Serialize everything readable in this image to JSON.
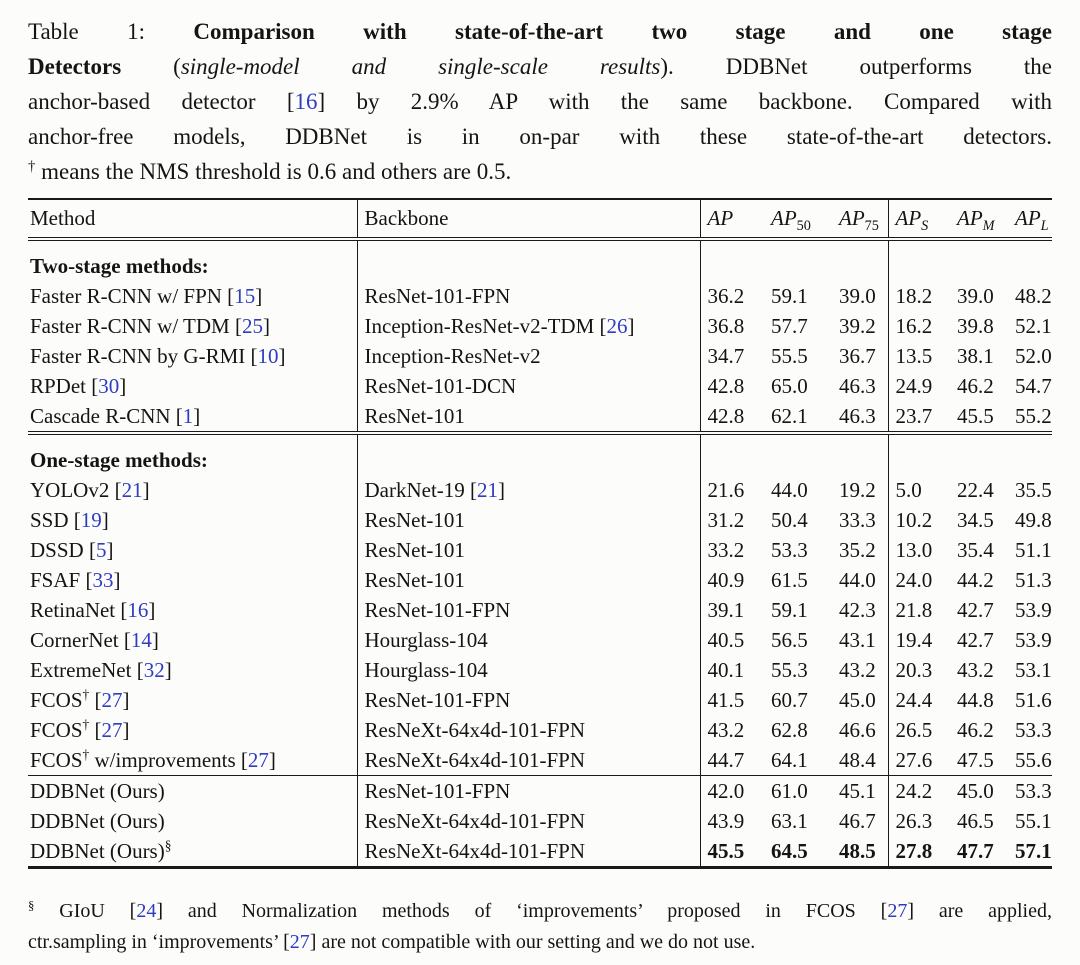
{
  "colors": {
    "citation": "#2e3cc2",
    "text": "#141414",
    "rule": "#1a1a1a",
    "background": "#fcfcfb"
  },
  "caption": {
    "lines": [
      {
        "last": false,
        "runs": [
          {
            "t": "Table 1: "
          },
          {
            "t": "Comparison with state-of-the-art two stage and one stage",
            "st": "bold"
          }
        ]
      },
      {
        "last": false,
        "runs": [
          {
            "t": "Detectors",
            "st": "bold"
          },
          {
            "t": " ("
          },
          {
            "t": "single-model and single-scale results",
            "st": "italic"
          },
          {
            "t": "). DDBNet outperforms the"
          }
        ]
      },
      {
        "last": false,
        "runs": [
          {
            "t": "anchor-based detector ["
          },
          {
            "t": "16",
            "st": "cite"
          },
          {
            "t": "] by 2.9% AP with the same backbone. Compared with"
          }
        ]
      },
      {
        "last": false,
        "runs": [
          {
            "t": "anchor-free models, DDBNet is in on-par with these state-of-the-art detectors."
          }
        ]
      },
      {
        "last": true,
        "runs": [
          {
            "t": "†",
            "st": "sup"
          },
          {
            "t": " means the NMS threshold is 0.6 and others are 0.5."
          }
        ]
      }
    ]
  },
  "table": {
    "header": {
      "method": "Method",
      "backbone": "Backbone",
      "metrics": [
        {
          "base": "AP",
          "sub": ""
        },
        {
          "base": "AP",
          "sub": "50"
        },
        {
          "base": "AP",
          "sub": "75"
        },
        {
          "base": "AP",
          "sub": "S"
        },
        {
          "base": "AP",
          "sub": "M"
        },
        {
          "base": "AP",
          "sub": "L"
        }
      ]
    },
    "sections": [
      {
        "title": "Two-stage methods:",
        "rule": "none",
        "rows": [
          {
            "method": [
              {
                "t": "Faster R-CNN w/ FPN ["
              },
              {
                "t": "15",
                "st": "cite"
              },
              {
                "t": "]"
              }
            ],
            "backbone": [
              {
                "t": "ResNet-101-FPN"
              }
            ],
            "values": [
              "36.2",
              "59.1",
              "39.0",
              "18.2",
              "39.0",
              "48.2"
            ],
            "bold": false
          },
          {
            "method": [
              {
                "t": "Faster R-CNN w/ TDM ["
              },
              {
                "t": "25",
                "st": "cite"
              },
              {
                "t": "]"
              }
            ],
            "backbone": [
              {
                "t": "Inception-ResNet-v2-TDM ["
              },
              {
                "t": "26",
                "st": "cite"
              },
              {
                "t": "]"
              }
            ],
            "values": [
              "36.8",
              "57.7",
              "39.2",
              "16.2",
              "39.8",
              "52.1"
            ],
            "bold": false
          },
          {
            "method": [
              {
                "t": "Faster R-CNN by G-RMI ["
              },
              {
                "t": "10",
                "st": "cite"
              },
              {
                "t": "]"
              }
            ],
            "backbone": [
              {
                "t": "Inception-ResNet-v2"
              }
            ],
            "values": [
              "34.7",
              "55.5",
              "36.7",
              "13.5",
              "38.1",
              "52.0"
            ],
            "bold": false
          },
          {
            "method": [
              {
                "t": "RPDet ["
              },
              {
                "t": "30",
                "st": "cite"
              },
              {
                "t": "]"
              }
            ],
            "backbone": [
              {
                "t": "ResNet-101-DCN"
              }
            ],
            "values": [
              "42.8",
              "65.0",
              "46.3",
              "24.9",
              "46.2",
              "54.7"
            ],
            "bold": false
          },
          {
            "method": [
              {
                "t": "Cascade R-CNN ["
              },
              {
                "t": "1",
                "st": "cite"
              },
              {
                "t": "]"
              }
            ],
            "backbone": [
              {
                "t": "ResNet-101"
              }
            ],
            "values": [
              "42.8",
              "62.1",
              "46.3",
              "23.7",
              "45.5",
              "55.2"
            ],
            "bold": false
          }
        ]
      },
      {
        "title": "One-stage methods:",
        "rule": "double",
        "rows": [
          {
            "method": [
              {
                "t": "YOLOv2 ["
              },
              {
                "t": "21",
                "st": "cite"
              },
              {
                "t": "]"
              }
            ],
            "backbone": [
              {
                "t": "DarkNet-19 ["
              },
              {
                "t": "21",
                "st": "cite"
              },
              {
                "t": "]"
              }
            ],
            "values": [
              "21.6",
              "44.0",
              "19.2",
              "5.0",
              "22.4",
              "35.5"
            ],
            "bold": false
          },
          {
            "method": [
              {
                "t": "SSD ["
              },
              {
                "t": "19",
                "st": "cite"
              },
              {
                "t": "]"
              }
            ],
            "backbone": [
              {
                "t": "ResNet-101"
              }
            ],
            "values": [
              "31.2",
              "50.4",
              "33.3",
              "10.2",
              "34.5",
              "49.8"
            ],
            "bold": false
          },
          {
            "method": [
              {
                "t": "DSSD ["
              },
              {
                "t": "5",
                "st": "cite"
              },
              {
                "t": "]"
              }
            ],
            "backbone": [
              {
                "t": "ResNet-101"
              }
            ],
            "values": [
              "33.2",
              "53.3",
              "35.2",
              "13.0",
              "35.4",
              "51.1"
            ],
            "bold": false
          },
          {
            "method": [
              {
                "t": "FSAF ["
              },
              {
                "t": "33",
                "st": "cite"
              },
              {
                "t": "]"
              }
            ],
            "backbone": [
              {
                "t": "ResNet-101"
              }
            ],
            "values": [
              "40.9",
              "61.5",
              "44.0",
              "24.0",
              "44.2",
              "51.3"
            ],
            "bold": false
          },
          {
            "method": [
              {
                "t": "RetinaNet ["
              },
              {
                "t": "16",
                "st": "cite"
              },
              {
                "t": "]"
              }
            ],
            "backbone": [
              {
                "t": "ResNet-101-FPN"
              }
            ],
            "values": [
              "39.1",
              "59.1",
              "42.3",
              "21.8",
              "42.7",
              "53.9"
            ],
            "bold": false
          },
          {
            "method": [
              {
                "t": "CornerNet ["
              },
              {
                "t": "14",
                "st": "cite"
              },
              {
                "t": "]"
              }
            ],
            "backbone": [
              {
                "t": "Hourglass-104"
              }
            ],
            "values": [
              "40.5",
              "56.5",
              "43.1",
              "19.4",
              "42.7",
              "53.9"
            ],
            "bold": false
          },
          {
            "method": [
              {
                "t": "ExtremeNet ["
              },
              {
                "t": "32",
                "st": "cite"
              },
              {
                "t": "]"
              }
            ],
            "backbone": [
              {
                "t": "Hourglass-104"
              }
            ],
            "values": [
              "40.1",
              "55.3",
              "43.2",
              "20.3",
              "43.2",
              "53.1"
            ],
            "bold": false
          },
          {
            "method": [
              {
                "t": "FCOS"
              },
              {
                "t": "†",
                "st": "sup"
              },
              {
                "t": " ["
              },
              {
                "t": "27",
                "st": "cite"
              },
              {
                "t": "]"
              }
            ],
            "backbone": [
              {
                "t": "ResNet-101-FPN"
              }
            ],
            "values": [
              "41.5",
              "60.7",
              "45.0",
              "24.4",
              "44.8",
              "51.6"
            ],
            "bold": false
          },
          {
            "method": [
              {
                "t": "FCOS"
              },
              {
                "t": "†",
                "st": "sup"
              },
              {
                "t": " ["
              },
              {
                "t": "27",
                "st": "cite"
              },
              {
                "t": "]"
              }
            ],
            "backbone": [
              {
                "t": "ResNeXt-64x4d-101-FPN"
              }
            ],
            "values": [
              "43.2",
              "62.8",
              "46.6",
              "26.5",
              "46.2",
              "53.3"
            ],
            "bold": false
          },
          {
            "method": [
              {
                "t": "FCOS"
              },
              {
                "t": "†",
                "st": "sup"
              },
              {
                "t": " w/improvements ["
              },
              {
                "t": "27",
                "st": "cite"
              },
              {
                "t": "]"
              }
            ],
            "backbone": [
              {
                "t": "ResNeXt-64x4d-101-FPN"
              }
            ],
            "values": [
              "44.7",
              "64.1",
              "48.4",
              "27.6",
              "47.5",
              "55.6"
            ],
            "bold": false
          }
        ]
      },
      {
        "title": "",
        "rule": "single",
        "rows": [
          {
            "method": [
              {
                "t": "DDBNet (Ours)"
              }
            ],
            "backbone": [
              {
                "t": "ResNet-101-FPN"
              }
            ],
            "values": [
              "42.0",
              "61.0",
              "45.1",
              "24.2",
              "45.0",
              "53.3"
            ],
            "bold": false
          },
          {
            "method": [
              {
                "t": "DDBNet (Ours)"
              }
            ],
            "backbone": [
              {
                "t": "ResNeXt-64x4d-101-FPN"
              }
            ],
            "values": [
              "43.9",
              "63.1",
              "46.7",
              "26.3",
              "46.5",
              "55.1"
            ],
            "bold": false
          },
          {
            "method": [
              {
                "t": "DDBNet (Ours)"
              },
              {
                "t": "§",
                "st": "sup"
              }
            ],
            "backbone": [
              {
                "t": "ResNeXt-64x4d-101-FPN"
              }
            ],
            "values": [
              "45.5",
              "64.5",
              "48.5",
              "27.8",
              "47.7",
              "57.1"
            ],
            "bold": true
          }
        ]
      }
    ]
  },
  "footnote": {
    "lines": [
      {
        "last": false,
        "runs": [
          {
            "t": "§",
            "st": "sup"
          },
          {
            "t": " GIoU ["
          },
          {
            "t": "24",
            "st": "cite"
          },
          {
            "t": "] and Normalization methods of ‘improvements’ proposed in FCOS ["
          },
          {
            "t": "27",
            "st": "cite"
          },
          {
            "t": "] are applied,"
          }
        ]
      },
      {
        "last": true,
        "runs": [
          {
            "t": "ctr.sampling in ‘improvements’ ["
          },
          {
            "t": "27",
            "st": "cite"
          },
          {
            "t": "] are not compatible with our setting and we do not use."
          }
        ]
      }
    ]
  }
}
